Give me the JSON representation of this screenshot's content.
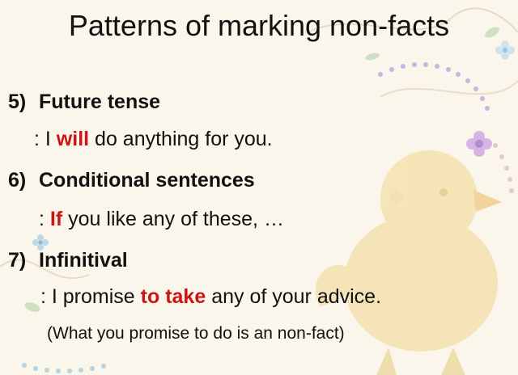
{
  "title": "Patterns of marking non-facts",
  "items": [
    {
      "number": "5)",
      "heading": "Future tense",
      "example": {
        "prefix": ": I ",
        "highlight": "will",
        "suffix": " do anything for you."
      }
    },
    {
      "number": "6)",
      "heading": "Conditional sentences",
      "example": {
        "prefix": ": ",
        "highlight": "If",
        "suffix": " you like any of these, …"
      }
    },
    {
      "number": "7)",
      "heading": "Infinitival",
      "example": {
        "prefix": ": I promise ",
        "highlight": "to take",
        "suffix": " any of your advice."
      }
    }
  ],
  "note": "(What you promise to do is an non-fact)",
  "colors": {
    "background": "#fbf6ec",
    "highlight": "#cc1414",
    "bird": "#f5e2ae",
    "decor_purple": "#c9a6d8",
    "decor_blue": "#a8cfe0"
  }
}
